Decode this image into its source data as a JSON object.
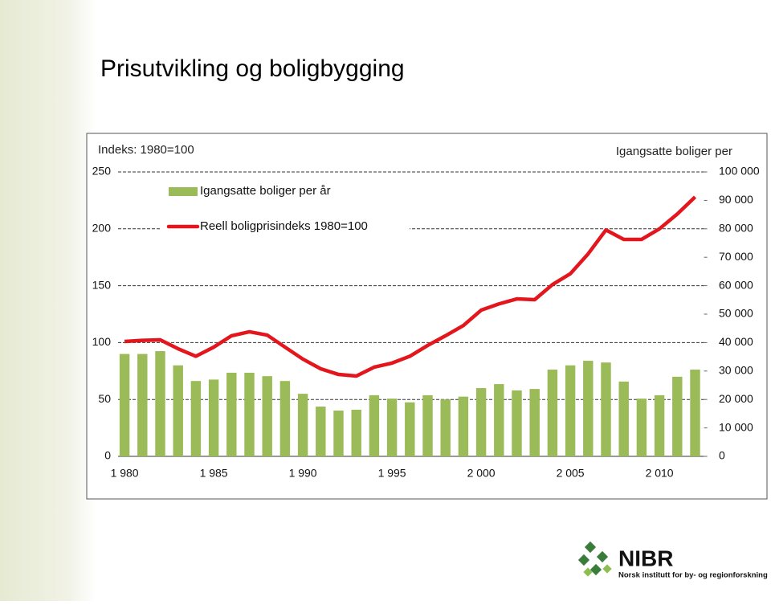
{
  "slide_title": "Prisutvikling og boligbygging",
  "chart_data": {
    "type": "combo",
    "y_label": "Indeks: 1980=100",
    "y2_label": "Igangsatte boliger per",
    "categories": [
      "1 980",
      null,
      null,
      null,
      null,
      "1 985",
      null,
      null,
      null,
      null,
      "1 990",
      null,
      null,
      null,
      null,
      "1 995",
      null,
      null,
      null,
      null,
      "2 000",
      null,
      null,
      null,
      null,
      "2 005",
      null,
      null,
      null,
      null,
      "2 010",
      null,
      null
    ],
    "series": [
      {
        "name": "Igangsatte boliger per år",
        "type": "bar",
        "axis": "y2",
        "color": "#9bbb59",
        "values": [
          36000,
          36000,
          37000,
          32000,
          26500,
          27000,
          29400,
          29400,
          28200,
          26500,
          22000,
          17500,
          16100,
          16400,
          21500,
          20300,
          19000,
          21500,
          20000,
          21000,
          24000,
          25400,
          23200,
          23700,
          30500,
          32000,
          33600,
          33000,
          26300,
          20300,
          21500,
          28000,
          30500
        ]
      },
      {
        "name": "Reell boligprisindeks 1980=100",
        "type": "line",
        "axis": "y",
        "color": "#e3161d",
        "values": [
          101,
          102,
          102.4,
          94.6,
          88,
          96,
          106,
          109.5,
          106.6,
          96,
          85.5,
          77,
          72,
          70.6,
          78.4,
          82,
          88,
          97.5,
          106,
          115,
          128.5,
          134,
          138.4,
          137.7,
          151,
          160.5,
          178,
          199,
          190.7,
          190.7,
          200,
          213,
          228
        ]
      }
    ],
    "ylim": [
      0,
      250
    ],
    "yticks": [
      0,
      50,
      100,
      150,
      200,
      250
    ],
    "y2lim": [
      0,
      100000
    ],
    "y2ticks": [
      0,
      {
        "value": 10000,
        "label": "10 000"
      },
      {
        "value": 20000,
        "label": "20 000"
      },
      {
        "value": 30000,
        "label": "30 000"
      },
      {
        "value": 40000,
        "label": "40 000"
      },
      {
        "value": 50000,
        "label": "50 000"
      },
      {
        "value": 60000,
        "label": "60 000"
      },
      {
        "value": 70000,
        "label": "70 000"
      },
      {
        "value": 80000,
        "label": "80 000"
      },
      {
        "value": 90000,
        "label": "90 000"
      },
      {
        "value": 100000,
        "label": "100 000"
      }
    ],
    "grid": true,
    "grid_style": "dashed",
    "legend": "upper left"
  },
  "logo": {
    "name": "NIBR",
    "tagline": "Norsk institutt for by- og regionforskning"
  }
}
